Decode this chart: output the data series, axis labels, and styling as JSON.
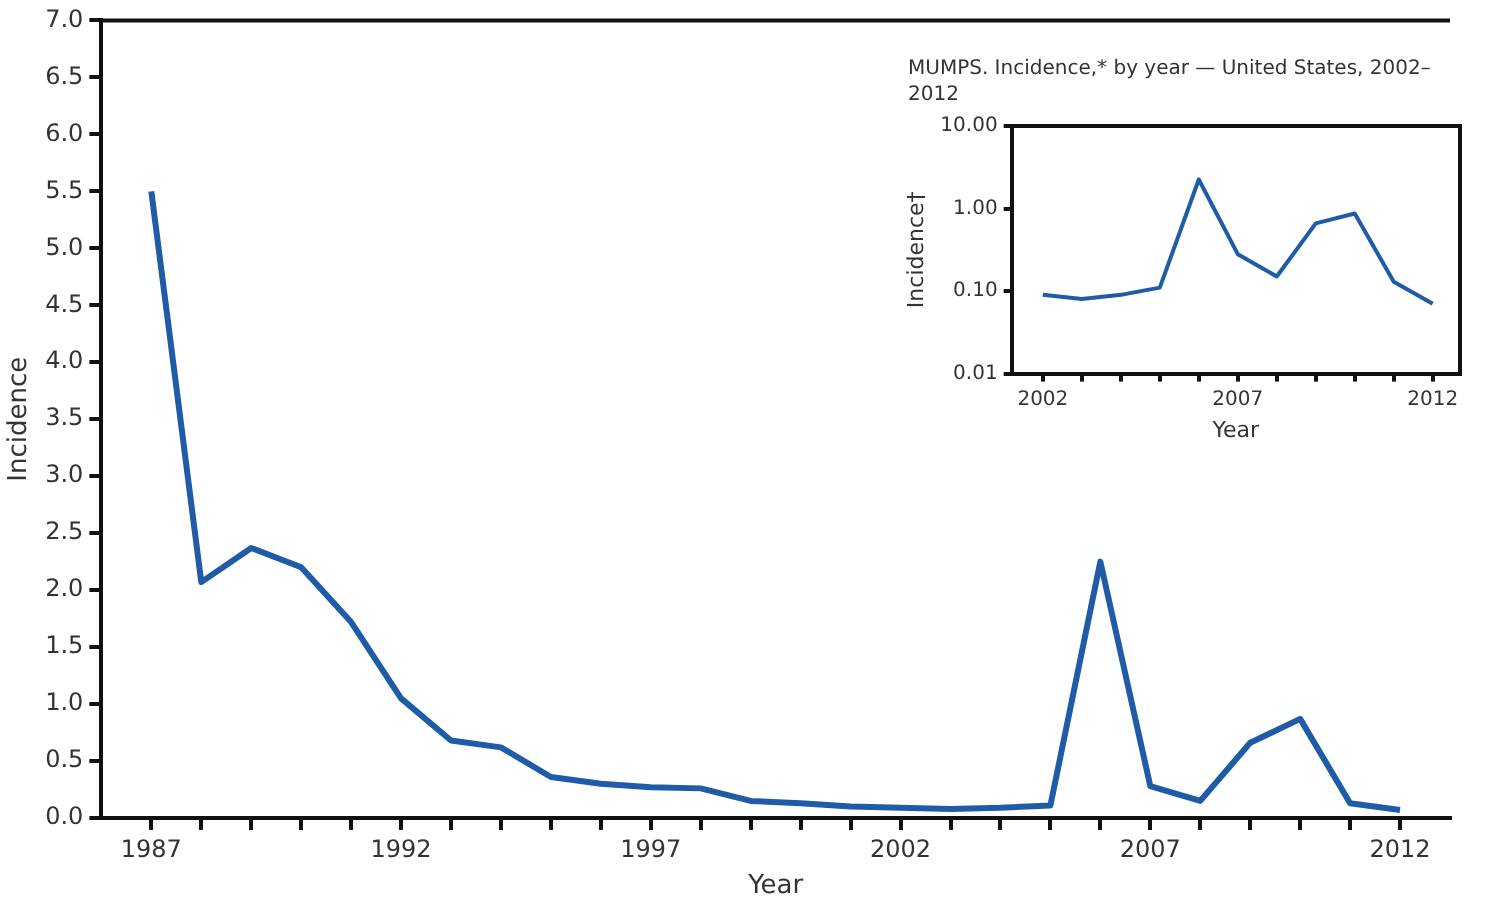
{
  "chart_data": [
    {
      "type": "line",
      "xlabel": "Year",
      "ylabel": "Incidence",
      "x": [
        1987,
        1988,
        1989,
        1990,
        1991,
        1992,
        1993,
        1994,
        1995,
        1996,
        1997,
        1998,
        1999,
        2000,
        2001,
        2002,
        2003,
        2004,
        2005,
        2006,
        2007,
        2008,
        2009,
        2010,
        2011,
        2012
      ],
      "values": [
        5.5,
        2.07,
        2.37,
        2.2,
        1.72,
        1.05,
        0.68,
        0.62,
        0.36,
        0.3,
        0.27,
        0.26,
        0.15,
        0.13,
        0.1,
        0.09,
        0.08,
        0.09,
        0.11,
        2.25,
        0.28,
        0.15,
        0.66,
        0.87,
        0.13,
        0.07
      ],
      "color": "#1f5ca8",
      "xlim": [
        1986,
        2013
      ],
      "xticks": [
        1987,
        {
          "value": 1988,
          "label": null
        },
        {
          "value": 1989,
          "label": null
        },
        {
          "value": 1990,
          "label": null
        },
        {
          "value": 1991,
          "label": null
        },
        1992,
        {
          "value": 1993,
          "label": null
        },
        {
          "value": 1994,
          "label": null
        },
        {
          "value": 1995,
          "label": null
        },
        {
          "value": 1996,
          "label": null
        },
        1997,
        {
          "value": 1998,
          "label": null
        },
        {
          "value": 1999,
          "label": null
        },
        {
          "value": 2000,
          "label": null
        },
        {
          "value": 2001,
          "label": null
        },
        2002,
        {
          "value": 2003,
          "label": null
        },
        {
          "value": 2004,
          "label": null
        },
        {
          "value": 2005,
          "label": null
        },
        {
          "value": 2006,
          "label": null
        },
        2007,
        {
          "value": 2008,
          "label": null
        },
        {
          "value": 2009,
          "label": null
        },
        {
          "value": 2010,
          "label": null
        },
        {
          "value": 2011,
          "label": null
        },
        2012
      ],
      "ylim": [
        0,
        7
      ],
      "yticks": [
        {
          "value": 0,
          "label": "0.0"
        },
        0.5,
        {
          "value": 1,
          "label": "1.0"
        },
        1.5,
        {
          "value": 2,
          "label": "2.0"
        },
        2.5,
        {
          "value": 3,
          "label": "3.0"
        },
        3.5,
        {
          "value": 4,
          "label": "4.0"
        },
        4.5,
        {
          "value": 5,
          "label": "5.0"
        },
        5.5,
        {
          "value": 6,
          "label": "6.0"
        },
        6.5,
        {
          "value": 7,
          "label": "7.0"
        }
      ]
    },
    {
      "type": "line",
      "title": "MUMPS. Incidence,* by year — United States, 2002–2012",
      "xlabel": "Year",
      "ylabel": "Incidence†",
      "x": [
        2002,
        2003,
        2004,
        2005,
        2006,
        2007,
        2008,
        2009,
        2010,
        2011,
        2012
      ],
      "values": [
        0.09,
        0.08,
        0.09,
        0.11,
        2.25,
        0.28,
        0.15,
        0.66,
        0.87,
        0.13,
        0.07
      ],
      "color": "#1f5ca8",
      "log": true,
      "xlim": [
        2001.2,
        2012.7
      ],
      "xticks": [
        2002,
        {
          "value": 2003,
          "label": null
        },
        {
          "value": 2004,
          "label": null
        },
        {
          "value": 2005,
          "label": null
        },
        {
          "value": 2006,
          "label": null
        },
        2007,
        {
          "value": 2008,
          "label": null
        },
        {
          "value": 2009,
          "label": null
        },
        {
          "value": 2010,
          "label": null
        },
        {
          "value": 2011,
          "label": null
        },
        2012
      ],
      "ylim": [
        0.01,
        10
      ],
      "yticks": [
        {
          "value": 0.01,
          "label": "0.01"
        },
        {
          "value": 0.1,
          "label": "0.10"
        },
        {
          "value": 1,
          "label": "1.00"
        },
        {
          "value": 10,
          "label": "10.00"
        }
      ]
    }
  ]
}
